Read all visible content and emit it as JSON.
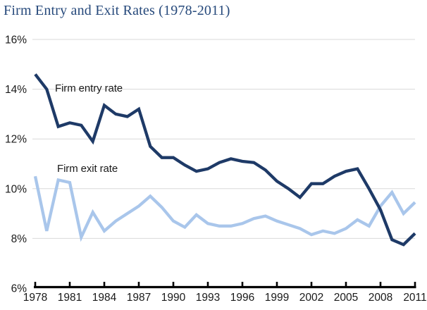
{
  "page": {
    "background": "#ffffff"
  },
  "chart": {
    "title": "Firm Entry and Exit Rates (1978-2011)",
    "series_labels": {
      "entry": "Firm entry rate",
      "exit": "Firm exit rate"
    }
  },
  "chart_data": {
    "type": "line",
    "title": "Firm Entry and Exit Rates (1978-2011)",
    "xlabel": "",
    "ylabel": "",
    "ylim": [
      6,
      16
    ],
    "grid": "horizontal",
    "legend_position": "inline-annotations",
    "x": [
      1978,
      1979,
      1980,
      1981,
      1982,
      1983,
      1984,
      1985,
      1986,
      1987,
      1988,
      1989,
      1990,
      1991,
      1992,
      1993,
      1994,
      1995,
      1996,
      1997,
      1998,
      1999,
      2000,
      2001,
      2002,
      2003,
      2004,
      2005,
      2006,
      2007,
      2008,
      2009,
      2010,
      2011
    ],
    "series": [
      {
        "name": "Firm entry rate",
        "color": "#1e3a67",
        "values": [
          14.6,
          14.0,
          12.5,
          12.65,
          12.55,
          11.9,
          13.35,
          13.0,
          12.9,
          13.2,
          11.7,
          11.25,
          11.25,
          10.95,
          10.7,
          10.8,
          11.05,
          11.2,
          11.1,
          11.05,
          10.75,
          10.3,
          10.0,
          9.65,
          10.2,
          10.2,
          10.5,
          10.7,
          10.8,
          10.0,
          9.15,
          7.95,
          7.75,
          8.2
        ]
      },
      {
        "name": "Firm exit rate",
        "color": "#a9c6eb",
        "values": [
          10.5,
          8.3,
          10.35,
          10.25,
          8.05,
          9.05,
          8.3,
          8.7,
          9.0,
          9.3,
          9.7,
          9.25,
          8.7,
          8.45,
          8.95,
          8.6,
          8.5,
          8.5,
          8.6,
          8.8,
          8.9,
          8.7,
          8.55,
          8.4,
          8.15,
          8.3,
          8.2,
          8.4,
          8.75,
          8.5,
          9.3,
          9.85,
          9.0,
          9.45
        ]
      }
    ],
    "yticks": [
      {
        "value": 16,
        "label": "16%"
      },
      {
        "value": 14,
        "label": "14%"
      },
      {
        "value": 12,
        "label": "12%"
      },
      {
        "value": 10,
        "label": "10%"
      },
      {
        "value": 8,
        "label": "8%"
      },
      {
        "value": 6,
        "label": "6%"
      }
    ],
    "xtick_years": [
      1978,
      1981,
      1984,
      1987,
      1990,
      1993,
      1996,
      1999,
      2002,
      2005,
      2008,
      2011
    ],
    "colors": {
      "grid": "#d9d9d9",
      "axis": "#000000",
      "tick_label": "#1a1a1a",
      "title": "#26497b"
    }
  }
}
